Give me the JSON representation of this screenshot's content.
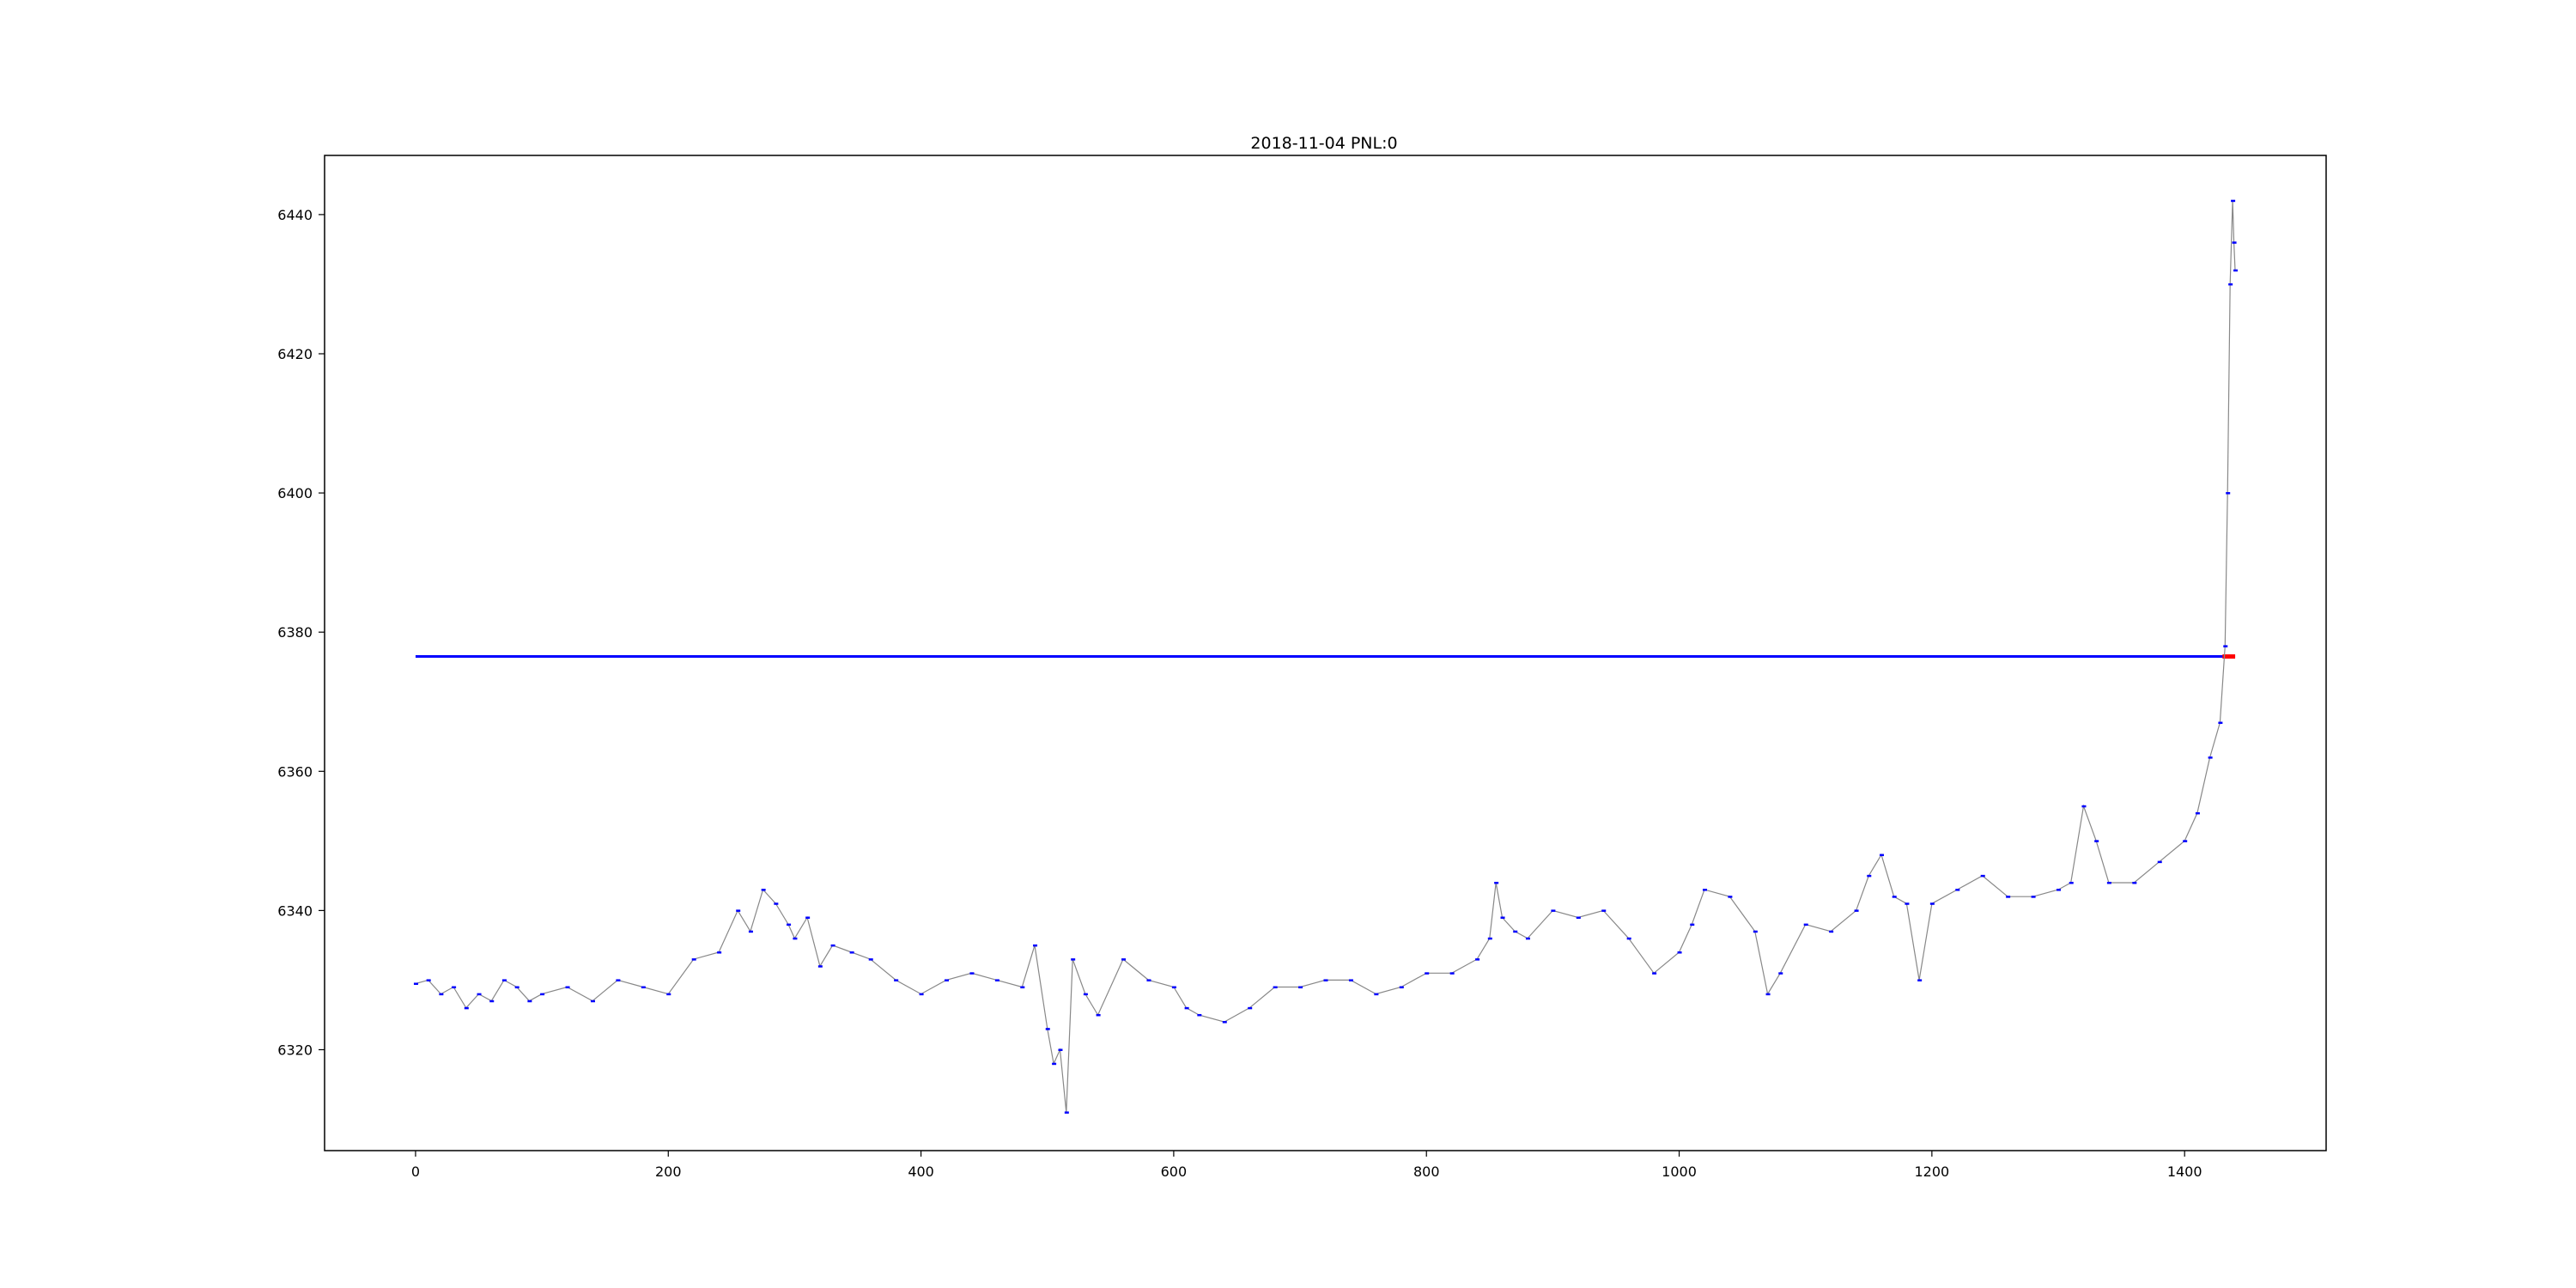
{
  "chart_data": {
    "type": "line",
    "title": "2018-11-04 PNL:0",
    "xlabel": "",
    "ylabel": "",
    "xlim": [
      -72,
      1512
    ],
    "ylim": [
      6305.5,
      6448.5
    ],
    "x_ticks": [
      0,
      200,
      400,
      600,
      800,
      1000,
      1200,
      1400
    ],
    "y_ticks": [
      6320,
      6340,
      6360,
      6380,
      6400,
      6420,
      6440
    ],
    "x_tick_labels": [
      "0",
      "200",
      "400",
      "600",
      "800",
      "1000",
      "1200",
      "1400"
    ],
    "y_tick_labels": [
      "6320",
      "6340",
      "6360",
      "6380",
      "6400",
      "6420",
      "6440"
    ],
    "grid": false,
    "legend": "none",
    "series": [
      {
        "role": "price",
        "color": "#888888",
        "marker_color": "#0000ff",
        "x": [
          0,
          10,
          20,
          30,
          40,
          50,
          60,
          70,
          80,
          90,
          100,
          120,
          140,
          160,
          180,
          200,
          220,
          240,
          255,
          265,
          275,
          285,
          295,
          300,
          310,
          320,
          330,
          345,
          360,
          380,
          400,
          420,
          440,
          460,
          480,
          490,
          500,
          505,
          510,
          515,
          520,
          530,
          540,
          560,
          580,
          600,
          610,
          620,
          640,
          660,
          680,
          700,
          720,
          740,
          760,
          780,
          800,
          820,
          840,
          850,
          855,
          860,
          870,
          880,
          900,
          920,
          940,
          960,
          980,
          1000,
          1010,
          1020,
          1040,
          1060,
          1070,
          1080,
          1100,
          1120,
          1140,
          1150,
          1160,
          1170,
          1180,
          1190,
          1200,
          1220,
          1240,
          1260,
          1280,
          1300,
          1310,
          1320,
          1330,
          1340,
          1360,
          1380,
          1400,
          1410,
          1420,
          1428,
          1432,
          1434,
          1436,
          1438
        ],
        "values": [
          6329.5,
          6330,
          6328,
          6329,
          6326,
          6328,
          6327,
          6330,
          6329,
          6327,
          6328,
          6329,
          6327,
          6330,
          6329,
          6328,
          6333,
          6334,
          6340,
          6337,
          6343,
          6341,
          6338,
          6336,
          6339,
          6332,
          6335,
          6334,
          6333,
          6330,
          6328,
          6330,
          6331,
          6330,
          6329,
          6335,
          6323,
          6318,
          6320,
          6311,
          6333,
          6328,
          6325,
          6333,
          6330,
          6329,
          6326,
          6325,
          6324,
          6326,
          6329,
          6329,
          6330,
          6330,
          6328,
          6329,
          6331,
          6331,
          6333,
          6336,
          6344,
          6339,
          6337,
          6336,
          6340,
          6339,
          6340,
          6336,
          6331,
          6334,
          6338,
          6343,
          6342,
          6337,
          6328,
          6331,
          6338,
          6337,
          6340,
          6345,
          6348,
          6342,
          6341,
          6330,
          6341,
          6343,
          6345,
          6342,
          6342,
          6343,
          6344,
          6355,
          6350,
          6344,
          6344,
          6347,
          6350,
          6354,
          6362,
          6367,
          6378,
          6400,
          6430,
          6442
        ],
        "extra_points": [
          [
            1439,
            6436
          ],
          [
            1440,
            6432
          ]
        ]
      },
      {
        "role": "reference",
        "color": "#0000ff",
        "x": [
          0,
          1440
        ],
        "values": [
          6376.5,
          6376.5
        ],
        "end_color": "#ff0000",
        "end_x": [
          1430,
          1440
        ]
      }
    ]
  }
}
